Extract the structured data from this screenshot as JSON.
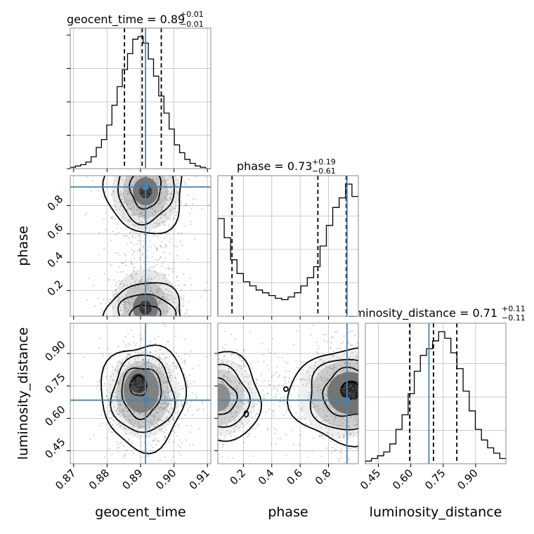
{
  "chart_data": {
    "type": "corner",
    "params": [
      "geocent_time",
      "phase",
      "luminosity_distance"
    ],
    "axis_labels": {
      "geocent_time": "geocent_time",
      "phase": "phase",
      "luminosity_distance": "luminosity_distance"
    },
    "ranges": {
      "geocent_time": [
        0.869,
        0.911
      ],
      "phase": [
        0.02,
        1.01
      ],
      "luminosity_distance": [
        0.39,
        1.04
      ]
    },
    "ticks": {
      "geocent_time": [
        0.87,
        0.88,
        0.89,
        0.9,
        0.91
      ],
      "phase": [
        0.2,
        0.4,
        0.6,
        0.8
      ],
      "luminosity_distance": [
        0.45,
        0.6,
        0.75,
        0.9
      ]
    },
    "tick_labels": {
      "geocent_time": [
        "0.87",
        "0.88",
        "0.89",
        "0.90",
        "0.91"
      ],
      "phase": [
        "0.2",
        "0.4",
        "0.6",
        "0.8"
      ],
      "luminosity_distance": [
        "0.45",
        "0.60",
        "0.75",
        "0.90"
      ]
    },
    "truths": {
      "geocent_time": 0.8915,
      "phase": 0.93,
      "luminosity_distance": 0.684
    },
    "titles": [
      {
        "param": "geocent_time",
        "label": "geocent_time",
        "median": "0.89",
        "plus": "+0.01",
        "minus": "−0.01"
      },
      {
        "param": "phase",
        "label": "phase",
        "median": "0.73",
        "plus": "+0.19",
        "minus": "−0.61"
      },
      {
        "param": "luminosity_distance",
        "label": "luminosity_distance",
        "median": "0.71",
        "plus": "+0.11",
        "minus": "−0.11"
      }
    ],
    "quantiles": {
      "geocent_time": [
        0.8852,
        0.8905,
        0.8962
      ],
      "phase": [
        0.12,
        0.725,
        0.925
      ],
      "luminosity_distance": [
        0.595,
        0.705,
        0.813
      ]
    },
    "histograms": {
      "geocent_time": [
        1,
        2,
        3,
        5,
        9,
        16,
        22,
        33,
        48,
        62,
        75,
        87,
        98,
        100,
        95,
        83,
        70,
        55,
        42,
        30,
        18,
        12,
        7,
        4,
        2,
        1,
        0
      ],
      "phase": [
        71,
        57,
        41,
        31,
        25,
        22,
        19,
        17,
        15,
        13,
        12,
        14,
        17,
        22,
        28,
        36,
        51,
        66,
        79,
        86,
        96,
        87
      ],
      "luminosity_distance": [
        2,
        4,
        6,
        9,
        15,
        26,
        37,
        53,
        70,
        82,
        87,
        93,
        100,
        95,
        84,
        72,
        55,
        40,
        26,
        18,
        12,
        8,
        4
      ]
    },
    "colors": {
      "truth": "#4682b4",
      "hist": "#000000",
      "quantile": "#000000",
      "grid": "#bdbdbd"
    },
    "grid": true
  }
}
